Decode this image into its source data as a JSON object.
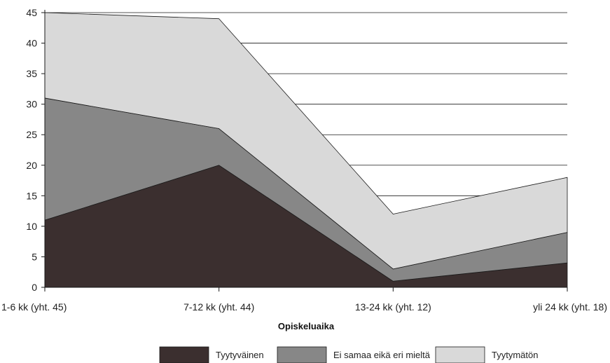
{
  "chart_data": {
    "type": "area",
    "stacked": true,
    "categories": [
      "1-6 kk (yht. 45)",
      "7-12 kk (yht. 44)",
      "13-24 kk (yht. 12)",
      "yli 24 kk (yht. 18)"
    ],
    "series": [
      {
        "name": "Tyytyväinen",
        "values": [
          11,
          20,
          1,
          4
        ],
        "color": "#3b2f2f"
      },
      {
        "name": "Ei samaa eikä eri mieltä",
        "values": [
          20,
          6,
          2,
          5
        ],
        "color": "#878787"
      },
      {
        "name": "Tyytymätön",
        "values": [
          14,
          18,
          9,
          9
        ],
        "color": "#d9d9d9"
      }
    ],
    "xlabel": "Opiskeluaika",
    "ylim": [
      0,
      45
    ],
    "yticks": [
      0,
      5,
      10,
      15,
      20,
      25,
      30,
      35,
      40,
      45
    ],
    "grid": "horizontal",
    "legend": "bottom"
  }
}
